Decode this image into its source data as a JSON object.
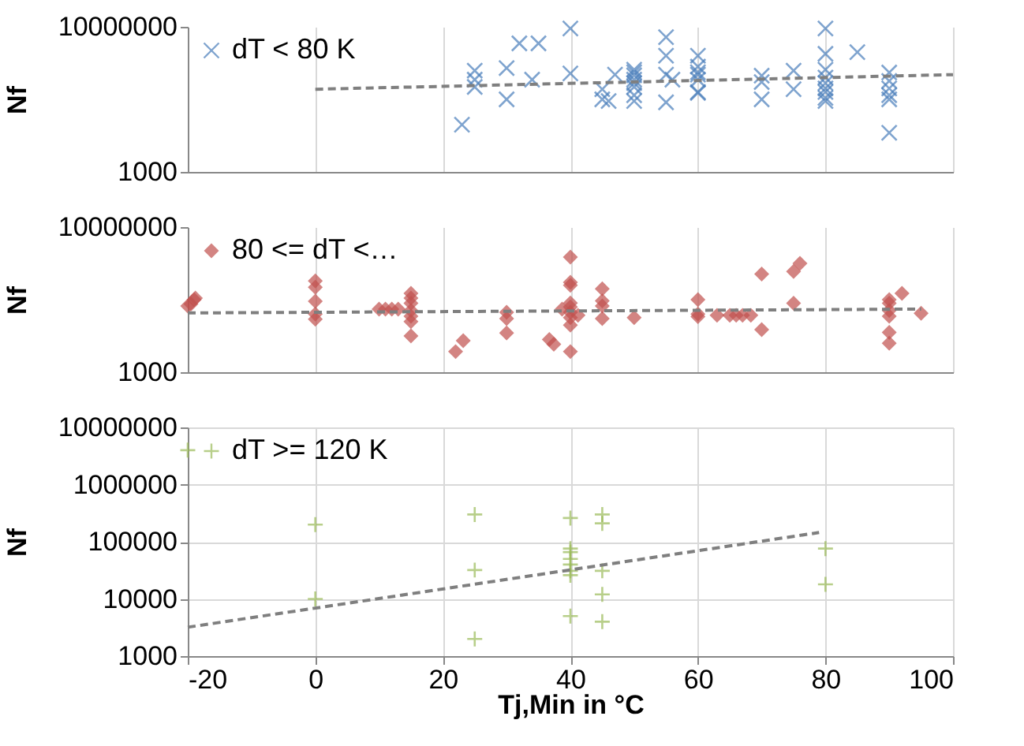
{
  "chart_data": [
    {
      "type": "scatter",
      "ylabel": "Nf",
      "log": true,
      "xlim": [
        -20,
        100
      ],
      "xticks": [
        -20,
        0,
        20,
        40,
        60,
        80,
        100
      ],
      "ylim": [
        1000,
        10000000
      ],
      "yticks": [
        1000,
        10000000
      ],
      "grid": "x",
      "tick_labels": "y",
      "legend": "top left",
      "series": [
        {
          "name": "dT < 80 K",
          "marker": "cross",
          "color": "#4a7ebb",
          "x": [
            23,
            25,
            25,
            25,
            30,
            30,
            32,
            35,
            34,
            40,
            40,
            45,
            45,
            46,
            47,
            50,
            50,
            50,
            50,
            50,
            50,
            50,
            50,
            55,
            55,
            55,
            55,
            56,
            60,
            60,
            60,
            60,
            60,
            60,
            60,
            70,
            70,
            70,
            75,
            75,
            80,
            80,
            80,
            80,
            80,
            80,
            80,
            80,
            80,
            85,
            90,
            90,
            90,
            90,
            90,
            90
          ],
          "values": [
            20000,
            620000,
            220000,
            350000,
            730000,
            100000,
            3500000,
            3500000,
            350000,
            9000000,
            520000,
            190000,
            100000,
            90000,
            480000,
            660000,
            560000,
            460000,
            350000,
            280000,
            220000,
            130000,
            90000,
            5200000,
            1600000,
            480000,
            83000,
            350000,
            1600000,
            800000,
            560000,
            480000,
            350000,
            160000,
            150000,
            450000,
            300000,
            100000,
            620000,
            190000,
            9000000,
            1800000,
            660000,
            400000,
            280000,
            200000,
            160000,
            110000,
            90000,
            2000000,
            550000,
            320000,
            200000,
            130000,
            100000,
            12000
          ]
        },
        {
          "type": "line",
          "line_style": "dashed",
          "color": "#7f7f7f",
          "x": [
            0,
            100
          ],
          "values": [
            190000,
            480000
          ]
        }
      ]
    },
    {
      "type": "scatter",
      "ylabel": "Nf",
      "log": true,
      "xlim": [
        -20,
        100
      ],
      "xticks": [
        -20,
        0,
        20,
        40,
        60,
        80,
        100
      ],
      "ylim": [
        1000,
        10000000
      ],
      "yticks": [
        1000,
        10000000
      ],
      "grid": "x",
      "tick_labels": "y",
      "legend": "top left",
      "series": [
        {
          "name": "80 <= dT <…",
          "marker": "diamond",
          "color": "#c0504d",
          "x": [
            -20,
            -19.5,
            -19,
            -18.8,
            0,
            0,
            0,
            0,
            0,
            10,
            11,
            12,
            13,
            15,
            15,
            15,
            15,
            15,
            15,
            15,
            22,
            23.2,
            30,
            30,
            30,
            36.7,
            37.4,
            38.7,
            40,
            40,
            40,
            40,
            40,
            40,
            40,
            40,
            40,
            41.2,
            45,
            45,
            45,
            45,
            50,
            60,
            60,
            60,
            63,
            65,
            66,
            67,
            68.3,
            70,
            70,
            75,
            76,
            75,
            90,
            90,
            90,
            90,
            90,
            90,
            92,
            95
          ],
          "values": [
            67000,
            76000,
            100000,
            110000,
            330000,
            220000,
            90000,
            40000,
            29000,
            55000,
            55000,
            55000,
            55000,
            150000,
            110000,
            80000,
            50000,
            35000,
            25000,
            10000,
            3700,
            7400,
            45000,
            30000,
            12000,
            8000,
            5900,
            55000,
            1500000,
            300000,
            250000,
            81000,
            63000,
            45000,
            32000,
            20000,
            3700,
            37000,
            200000,
            93000,
            67000,
            30000,
            32000,
            100000,
            40000,
            34000,
            37000,
            37000,
            37000,
            37000,
            37000,
            510000,
            15000,
            600000,
            1000000,
            80000,
            100000,
            80000,
            50000,
            35000,
            12500,
            6300,
            150000,
            42000
          ]
        },
        {
          "type": "line",
          "line_style": "dashed",
          "color": "#7f7f7f",
          "x": [
            -20,
            95
          ],
          "values": [
            43000,
            55000
          ]
        }
      ]
    },
    {
      "type": "scatter",
      "ylabel": "Nf",
      "xlabel": "Tj,Min in °C",
      "log": true,
      "xlim": [
        -20,
        100
      ],
      "xticks": [
        -20,
        0,
        20,
        40,
        60,
        80,
        100
      ],
      "ylim": [
        1000,
        10000000
      ],
      "yticks": [
        1000,
        10000,
        100000,
        1000000,
        10000000
      ],
      "grid": true,
      "legend": "top left",
      "series": [
        {
          "name": "dT >= 120 K",
          "marker": "plus",
          "color": "#9bbb59",
          "x": [
            -20,
            0,
            0,
            25,
            25,
            25,
            40,
            40,
            40,
            40,
            40,
            40,
            40,
            40,
            45,
            45,
            45,
            45,
            45,
            80,
            80
          ],
          "values": [
            4000000,
            200000,
            10000,
            300000,
            32000,
            2000,
            260000,
            76000,
            66000,
            50000,
            40000,
            31000,
            26000,
            5000,
            300000,
            210000,
            31000,
            12000,
            4000,
            76000,
            18000
          ]
        },
        {
          "type": "line",
          "line_style": "dashed",
          "color": "#7f7f7f",
          "x": [
            -20,
            79
          ],
          "values": [
            3200,
            145000
          ]
        }
      ]
    }
  ]
}
